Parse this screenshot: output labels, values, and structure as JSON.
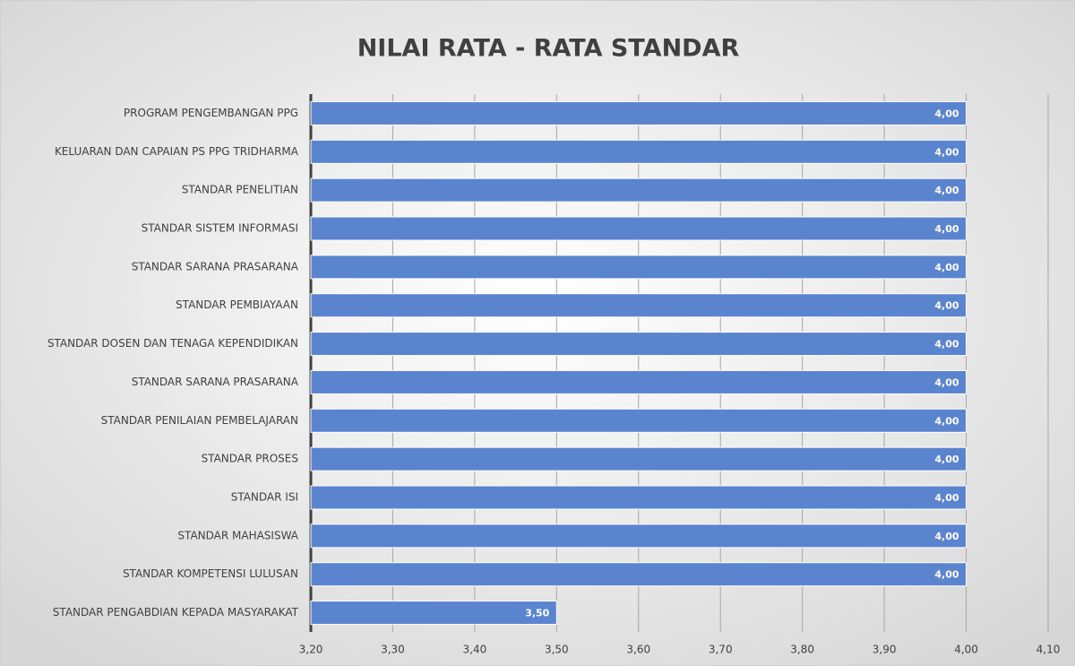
{
  "chart_data": {
    "type": "barh",
    "title": "NILAI RATA - RATA STANDAR",
    "categories": [
      "PROGRAM PENGEMBANGAN PPG",
      "KELUARAN DAN CAPAIAN PS PPG TRIDHARMA",
      "STANDAR PENELITIAN",
      "STANDAR SISTEM INFORMASI",
      "STANDAR SARANA PRASARANA",
      "STANDAR PEMBIAYAAN",
      "STANDAR DOSEN DAN TENAGA KEPENDIDIKAN",
      "STANDAR SARANA PRASARANA",
      "STANDAR PENILAIAN PEMBELAJARAN",
      "STANDAR PROSES",
      "STANDAR ISI",
      "STANDAR MAHASISWA",
      "STANDAR KOMPETENSI LULUSAN",
      "STANDAR PENGABDIAN KEPADA MASYARAKAT"
    ],
    "values": [
      4,
      4,
      4,
      4,
      4,
      4,
      4,
      4,
      4,
      4,
      4,
      4,
      4,
      3.5
    ],
    "value_labels": [
      "4,00",
      "4,00",
      "4,00",
      "4,00",
      "4,00",
      "4,00",
      "4,00",
      "4,00",
      "4,00",
      "4,00",
      "4,00",
      "4,00",
      "4,00",
      "3,50"
    ],
    "color": "#5b84cf",
    "xlim": [
      3.2,
      4.1
    ],
    "xticks": [
      {
        "value": 3.2,
        "label": "3,20"
      },
      {
        "value": 3.3,
        "label": "3,30"
      },
      {
        "value": 3.4,
        "label": "3,40"
      },
      {
        "value": 3.5,
        "label": "3,50"
      },
      {
        "value": 3.6,
        "label": "3,60"
      },
      {
        "value": 3.7,
        "label": "3,70"
      },
      {
        "value": 3.8,
        "label": "3,80"
      },
      {
        "value": 3.9,
        "label": "3,90"
      },
      {
        "value": 4.0,
        "label": "4,00"
      },
      {
        "value": 4.1,
        "label": "4,10"
      }
    ],
    "grid": true
  }
}
